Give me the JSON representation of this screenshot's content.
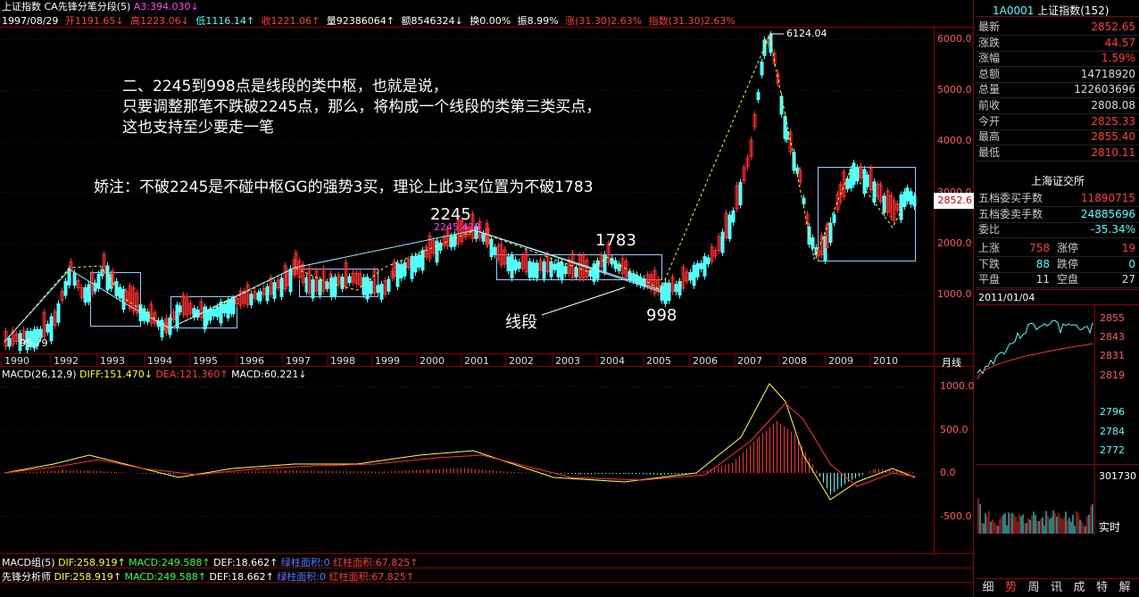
{
  "header": {
    "index_name": "上证指数",
    "indicator": "CA先锋分笔分段(5)",
    "a3": "A3:394.030↓",
    "date": "1997/08/29",
    "open": "开1191.65↓",
    "high": "高1223.06↓",
    "low": "低1116.14↑",
    "close": "收1221.06↑",
    "volume": "量92386064↑",
    "amount": "额8546324↓",
    "turnover": "换0.00%",
    "amplitude": "振8.99%",
    "change": "涨(31.30)2.63%",
    "index_change": "指数(31.30)2.63%"
  },
  "annotations": {
    "line1": "二、2245到998点是线段的类中枢，也就是说，",
    "line2": "只要调整那笔不跌破2245点，那么，将构成一个线段的类第三类买点，",
    "line3": "这也支持至少要走一笔",
    "note": "娇注：不破2245是不碰中枢GG的强势3买，理论上此3买位置为不破1783",
    "label_2245": "2245",
    "label_2245_small": "2245.410",
    "label_1783": "1783",
    "label_998": "998",
    "label_segment": "线段",
    "label_low": "95.79",
    "label_high": "6124.04"
  },
  "price_axis": [
    "6000.0",
    "5000.0",
    "4000.0",
    "3000.0",
    "2000.0",
    "1000.0"
  ],
  "current_price_tag": "2852.6",
  "years": [
    "1990",
    "1992",
    "1993",
    "1994",
    "1995",
    "1996",
    "1997",
    "1998",
    "1999",
    "2000",
    "2001",
    "2002",
    "2003",
    "2004",
    "2005",
    "2006",
    "2007",
    "2008",
    "2009",
    "2010"
  ],
  "period_label": "月线",
  "macd": {
    "title": "MACD(26,12,9)",
    "diff": "DIFF:151.470↓",
    "dea": "DEA:121.360↑",
    "macd": "MACD:60.221↓",
    "axis": [
      "1000.0",
      "500.0",
      "0.0",
      "-500.0"
    ]
  },
  "bottom_rows": [
    {
      "name": "MACD组(5)",
      "dif": "DIF:258.919↑",
      "macd": "MACD:249.588↑",
      "def": "DEF:18.662↑",
      "green": "绿柱面积:0",
      "red": "红柱面积:67.825↑"
    },
    {
      "name": "先锋分析师",
      "dif": "DIF:258.919↑",
      "macd": "MACD:249.588↑",
      "def": "DEF:18.662↑",
      "green": "绿柱面积:0",
      "red": "红柱面积:67.825↑"
    }
  ],
  "quote_panel": {
    "code": "1A0001",
    "name": "上证指数(152)",
    "rows": [
      {
        "label": "最新",
        "value": "2852.65",
        "color": "#ff3c3c"
      },
      {
        "label": "涨跌",
        "value": "44.57",
        "color": "#ff3c3c"
      },
      {
        "label": "涨幅",
        "value": "1.59%",
        "color": "#ff3c3c"
      },
      {
        "label": "总额",
        "value": "14718920",
        "color": "#dddddd"
      },
      {
        "label": "总量",
        "value": "122603696",
        "color": "#dddddd"
      },
      {
        "label": "前收",
        "value": "2808.08",
        "color": "#dddddd"
      },
      {
        "label": "今开",
        "value": "2825.33",
        "color": "#ff3c3c"
      },
      {
        "label": "最高",
        "value": "2855.40",
        "color": "#ff3c3c"
      },
      {
        "label": "最低",
        "value": "2810.11",
        "color": "#ff3c3c"
      }
    ],
    "exchange": "上海证交所",
    "orders": [
      {
        "label": "五档委买手数",
        "value": "11890715",
        "color": "#ff3c3c"
      },
      {
        "label": "五档委卖手数",
        "value": "24885696",
        "color": "#54ffff"
      },
      {
        "label": "委比",
        "value": "-35.34%",
        "color": "#54ffff"
      }
    ],
    "stats": [
      {
        "l1": "上涨",
        "v1": "758",
        "c1": "#ff3c3c",
        "l2": "涨停",
        "v2": "19",
        "c2": "#ff3c3c"
      },
      {
        "l1": "下跌",
        "v1": "88",
        "c1": "#54ffff",
        "l2": "跌停",
        "v2": "0",
        "c2": "#54ffff"
      },
      {
        "l1": "平盘",
        "v1": "11",
        "c1": "#dddddd",
        "l2": "空盘",
        "v2": "27",
        "c2": "#dddddd"
      }
    ],
    "mini_date": "2011/01/04",
    "mini_axis": [
      "2855",
      "2843",
      "2831",
      "2819",
      "2796",
      "2784",
      "2772"
    ],
    "volume_max": "301730",
    "realtime": "实时"
  },
  "tabs": [
    "细",
    "势",
    "周",
    "讯",
    "成",
    "特",
    "解"
  ],
  "active_tab": "势"
}
